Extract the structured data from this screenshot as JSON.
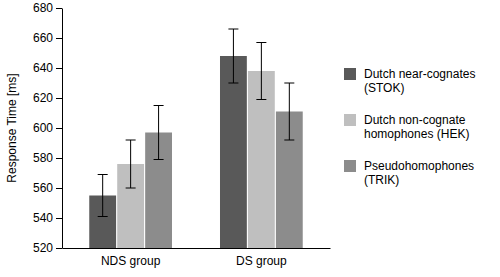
{
  "chart_data": {
    "type": "bar",
    "categories": [
      "NDS group",
      "DS group"
    ],
    "y_label": "Response Time [ms]",
    "ylim": [
      520,
      680
    ],
    "yticks": [
      520,
      540,
      560,
      580,
      600,
      620,
      640,
      660,
      680
    ],
    "grid": false,
    "legend": "right",
    "series": [
      {
        "name": "Dutch near-cognates (STOK)",
        "color": "#595959",
        "values": [
          555,
          648
        ],
        "errors": [
          14,
          18
        ]
      },
      {
        "name": "Dutch non-cognate homophones (HEK)",
        "color": "#bfbfbf",
        "values": [
          576,
          638
        ],
        "errors": [
          16,
          19
        ]
      },
      {
        "name": "Pseudohomophones (TRIK)",
        "color": "#8c8c8c",
        "values": [
          597,
          611
        ],
        "errors": [
          18,
          19
        ]
      }
    ]
  }
}
